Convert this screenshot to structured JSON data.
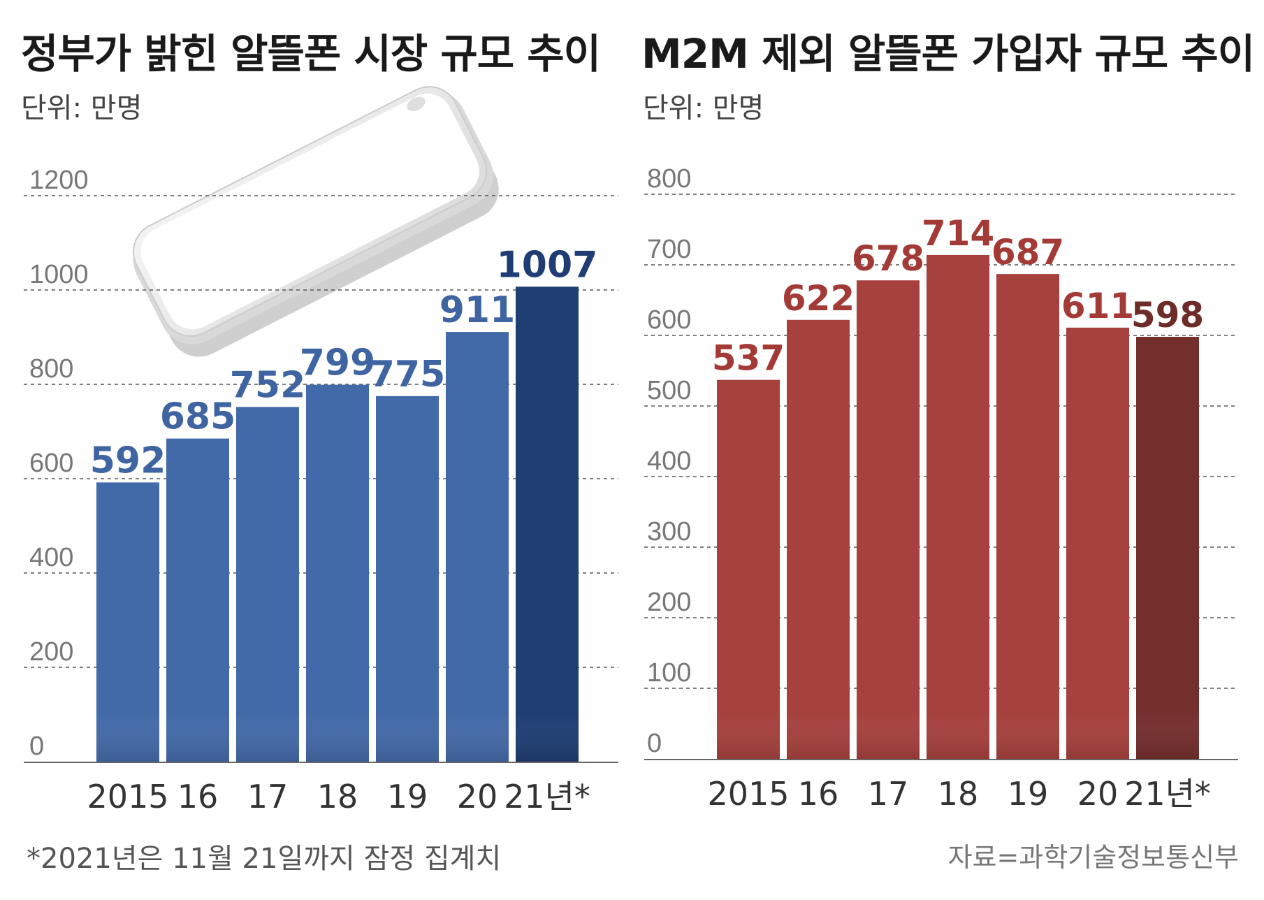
{
  "footnote": "*2021년은 11월 21일까지 잠정 집계치",
  "source": "자료=과학기술정보통신부",
  "colors": {
    "left_bar": "#436aa8",
    "left_bar_last": "#1f3e74",
    "right_bar": "#a6413d",
    "right_bar_last": "#742f2d",
    "grid": "#555555"
  },
  "chart_data": [
    {
      "type": "bar",
      "title": "정부가 밝힌 알뜰폰 시장 규모 추이",
      "unit": "단위: 만명",
      "categories": [
        "2015",
        "16",
        "17",
        "18",
        "19",
        "20",
        "21년*"
      ],
      "values": [
        592,
        685,
        752,
        799,
        775,
        911,
        1007
      ],
      "value_labels": [
        "592",
        "685",
        "752",
        "799",
        "775",
        "911",
        "1007"
      ],
      "yticks": [
        "0",
        "200",
        "400",
        "600",
        "800",
        "1000",
        "1200"
      ],
      "ylim": [
        0,
        1200
      ],
      "xlabel": "",
      "ylabel": ""
    },
    {
      "type": "bar",
      "title": "M2M 제외 알뜰폰 가입자 규모 추이",
      "unit": "단위: 만명",
      "categories": [
        "2015",
        "16",
        "17",
        "18",
        "19",
        "20",
        "21년*"
      ],
      "values": [
        537,
        622,
        678,
        714,
        687,
        611,
        598
      ],
      "value_labels": [
        "537",
        "622",
        "678",
        "714",
        "687",
        "611",
        "598"
      ],
      "yticks": [
        "0",
        "100",
        "200",
        "300",
        "400",
        "500",
        "600",
        "700",
        "800"
      ],
      "ylim": [
        0,
        800
      ],
      "xlabel": "",
      "ylabel": ""
    }
  ]
}
